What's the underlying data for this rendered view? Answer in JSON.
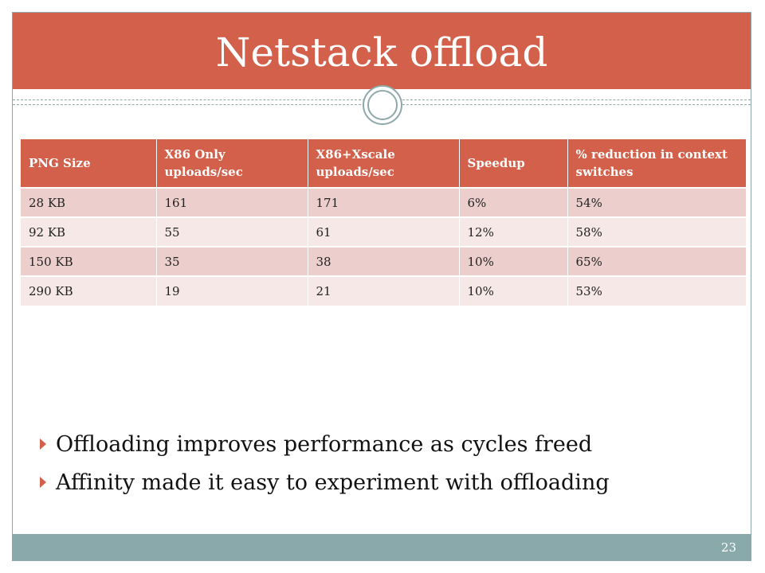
{
  "title": "Netstack offload",
  "table": {
    "headers": [
      "PNG Size",
      "X86 Only uploads/sec",
      "X86+Xscale uploads/sec",
      "Speedup",
      "% reduction in context switches"
    ],
    "rows": [
      [
        "28 KB",
        "161",
        "171",
        "6%",
        "54%"
      ],
      [
        "92 KB",
        "55",
        "61",
        "12%",
        "58%"
      ],
      [
        "150 KB",
        "35",
        "38",
        "10%",
        "65%"
      ],
      [
        "290 KB",
        "19",
        "21",
        "10%",
        "53%"
      ]
    ]
  },
  "bullets": [
    "Offloading improves performance as cycles freed",
    "Affinity made it easy to experiment with offloading"
  ],
  "slide_number": "23",
  "colors": {
    "accent": "#d2604a",
    "teal": "#8aa9aa",
    "row_odd": "#eccfcc",
    "row_even": "#f6e8e7"
  }
}
